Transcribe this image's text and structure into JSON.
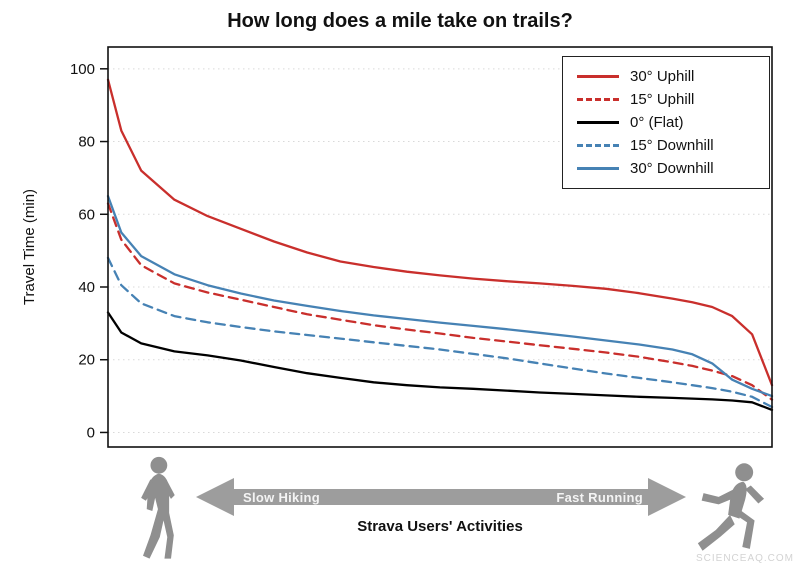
{
  "page": {
    "watermark": "SCIENCEAQ.COM"
  },
  "chart_data": {
    "type": "line",
    "title": "How long does a mile take on trails?",
    "xlabel": "Strava Users' Activities",
    "ylabel": "Travel Time (min)",
    "ylim": [
      0,
      100
    ],
    "yticks": [
      0,
      20,
      40,
      60,
      80,
      100
    ],
    "grid": true,
    "legend_position": "upper right",
    "x_axis_annotation": {
      "left": "Slow Hiking",
      "right": "Fast Running"
    },
    "x": [
      0,
      2,
      5,
      10,
      15,
      20,
      25,
      30,
      35,
      40,
      45,
      50,
      55,
      60,
      65,
      70,
      75,
      80,
      85,
      88,
      91,
      94,
      97,
      100
    ],
    "series": [
      {
        "name": "30° Uphill",
        "color": "#c92f2c",
        "style": "solid",
        "values": [
          97,
          83,
          72,
          64,
          59.5,
          56,
          52.5,
          49.5,
          47,
          45.5,
          44.2,
          43.2,
          42.3,
          41.6,
          41,
          40.3,
          39.5,
          38.3,
          36.8,
          35.8,
          34.5,
          32,
          27,
          13
        ]
      },
      {
        "name": "15° Uphill",
        "color": "#c92f2c",
        "style": "dashed",
        "values": [
          63,
          53,
          46,
          41,
          38.5,
          36.5,
          34.5,
          32.5,
          31,
          29.5,
          28.3,
          27.2,
          26,
          25,
          24,
          23,
          22,
          20.8,
          19.3,
          18.3,
          17,
          15.5,
          13,
          9
        ]
      },
      {
        "name": "0° (Flat)",
        "color": "#000000",
        "style": "solid",
        "values": [
          33,
          27.5,
          24.5,
          22.3,
          21.2,
          19.8,
          18,
          16.3,
          15,
          13.8,
          13,
          12.4,
          12,
          11.5,
          11,
          10.6,
          10.2,
          9.8,
          9.5,
          9.3,
          9.1,
          8.8,
          8.3,
          6.2
        ]
      },
      {
        "name": "15° Downhill",
        "color": "#4682b4",
        "style": "dashed",
        "values": [
          48,
          40.5,
          35.5,
          32,
          30.3,
          29,
          27.8,
          26.8,
          25.8,
          24.8,
          23.8,
          22.8,
          21.6,
          20.4,
          19,
          17.6,
          16.2,
          15,
          13.8,
          13,
          12.2,
          11.2,
          9.8,
          7
        ]
      },
      {
        "name": "30° Downhill",
        "color": "#4682b4",
        "style": "solid",
        "values": [
          65,
          55,
          48.5,
          43.5,
          40.5,
          38.2,
          36.3,
          34.8,
          33.4,
          32.2,
          31.2,
          30.2,
          29.3,
          28.4,
          27.4,
          26.4,
          25.3,
          24.2,
          22.8,
          21.5,
          19,
          14.5,
          12,
          10
        ]
      }
    ]
  }
}
